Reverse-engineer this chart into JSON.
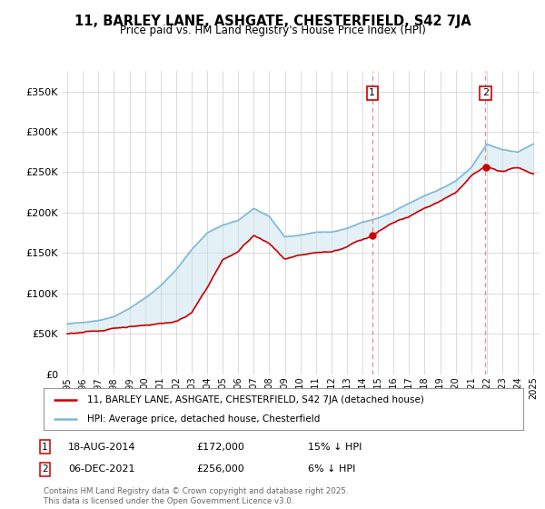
{
  "title": "11, BARLEY LANE, ASHGATE, CHESTERFIELD, S42 7JA",
  "subtitle": "Price paid vs. HM Land Registry's House Price Index (HPI)",
  "ylim": [
    0,
    375000
  ],
  "yticks": [
    0,
    50000,
    100000,
    150000,
    200000,
    250000,
    300000,
    350000
  ],
  "ytick_labels": [
    "£0",
    "£50K",
    "£100K",
    "£150K",
    "£200K",
    "£250K",
    "£300K",
    "£350K"
  ],
  "hpi_color": "#7EB8D4",
  "hpi_fill_color": "#C8E4F0",
  "price_color": "#CC0000",
  "marker1_year": 2014.63,
  "marker2_year": 2021.92,
  "marker1_price": 172000,
  "marker2_price": 256000,
  "legend_line1": "11, BARLEY LANE, ASHGATE, CHESTERFIELD, S42 7JA (detached house)",
  "legend_line2": "HPI: Average price, detached house, Chesterfield",
  "footer": "Contains HM Land Registry data © Crown copyright and database right 2025.\nThis data is licensed under the Open Government Licence v3.0.",
  "background_color": "#ffffff",
  "grid_color": "#cccccc",
  "hpi_keypoints_x": [
    1995,
    1996,
    1997,
    1998,
    1999,
    2000,
    2001,
    2002,
    2003,
    2004,
    2005,
    2006,
    2007,
    2008,
    2009,
    2010,
    2011,
    2012,
    2013,
    2014,
    2015,
    2016,
    2017,
    2018,
    2019,
    2020,
    2021,
    2022,
    2023,
    2024,
    2025
  ],
  "hpi_keypoints_y": [
    62000,
    64000,
    67000,
    72000,
    82000,
    95000,
    110000,
    130000,
    155000,
    175000,
    185000,
    190000,
    205000,
    195000,
    170000,
    172000,
    175000,
    175000,
    180000,
    187000,
    192000,
    200000,
    210000,
    220000,
    228000,
    238000,
    255000,
    285000,
    278000,
    275000,
    285000
  ],
  "price_keypoints_x": [
    1995,
    1996,
    1997,
    1998,
    1999,
    2000,
    2001,
    2002,
    2003,
    2004,
    2005,
    2006,
    2007,
    2008,
    2009,
    2010,
    2011,
    2012,
    2013,
    2014,
    2014.63,
    2015,
    2016,
    2017,
    2018,
    2019,
    2020,
    2021,
    2021.92,
    2022,
    2023,
    2024,
    2025
  ],
  "price_keypoints_y": [
    50000,
    51000,
    53000,
    57000,
    60000,
    62000,
    65000,
    68000,
    80000,
    110000,
    145000,
    155000,
    175000,
    165000,
    145000,
    148000,
    150000,
    152000,
    158000,
    168000,
    172000,
    178000,
    188000,
    195000,
    205000,
    215000,
    225000,
    245000,
    256000,
    255000,
    250000,
    255000,
    248000
  ]
}
